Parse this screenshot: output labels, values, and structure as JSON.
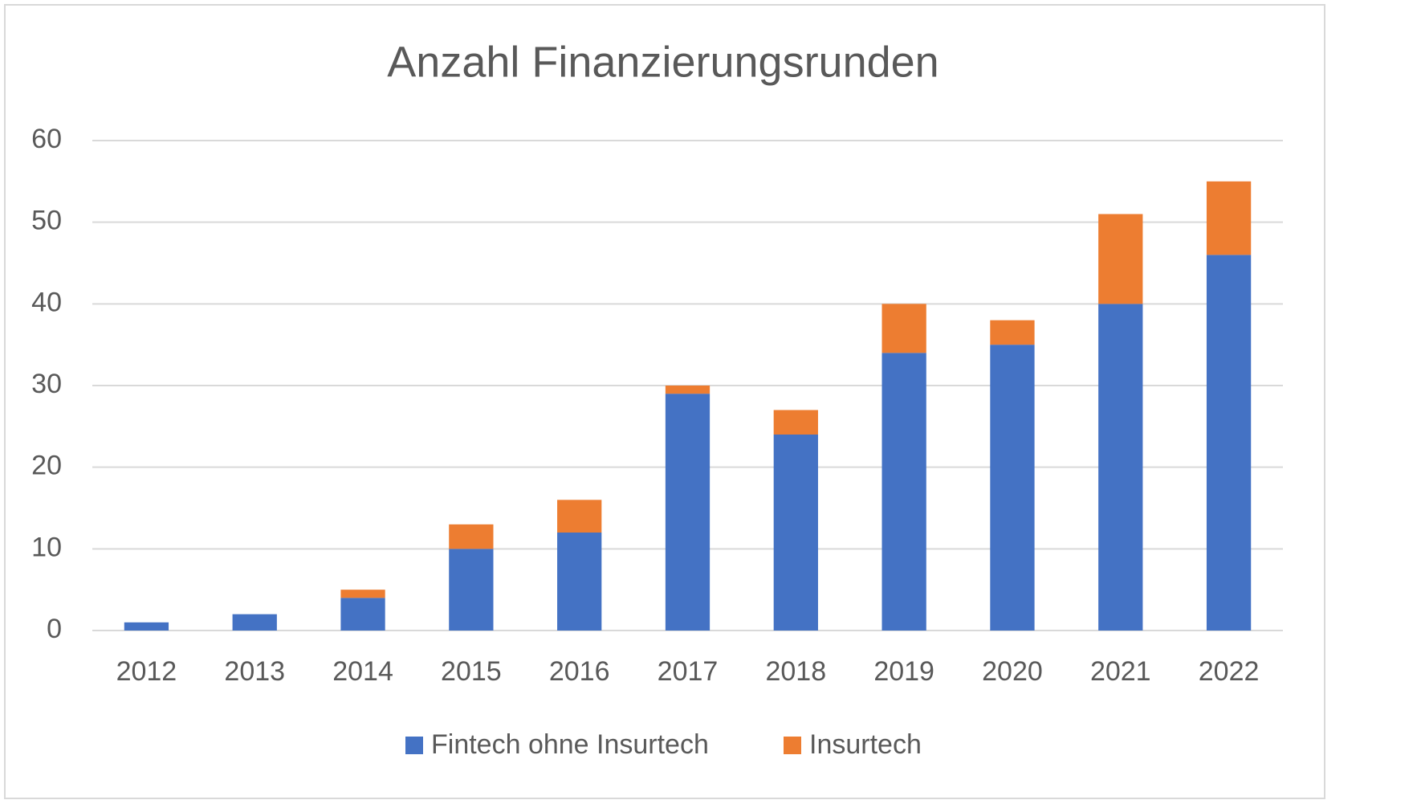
{
  "chart_data": {
    "type": "stacked_bar",
    "title": "Anzahl Finanzierungsrunden",
    "categories": [
      "2012",
      "2013",
      "2014",
      "2015",
      "2016",
      "2017",
      "2018",
      "2019",
      "2020",
      "2021",
      "2022"
    ],
    "series": [
      {
        "name": "Fintech ohne Insurtech",
        "color": "#4472c4",
        "values": [
          1,
          2,
          4,
          10,
          12,
          29,
          24,
          34,
          35,
          40,
          46
        ]
      },
      {
        "name": "Insurtech",
        "color": "#ed7d31",
        "values": [
          0,
          0,
          1,
          3,
          4,
          1,
          3,
          6,
          3,
          11,
          9
        ]
      }
    ],
    "ylim": [
      0,
      60
    ],
    "yticks": [
      0,
      10,
      20,
      30,
      40,
      50,
      60
    ],
    "grid": true,
    "legend": "bottom"
  }
}
